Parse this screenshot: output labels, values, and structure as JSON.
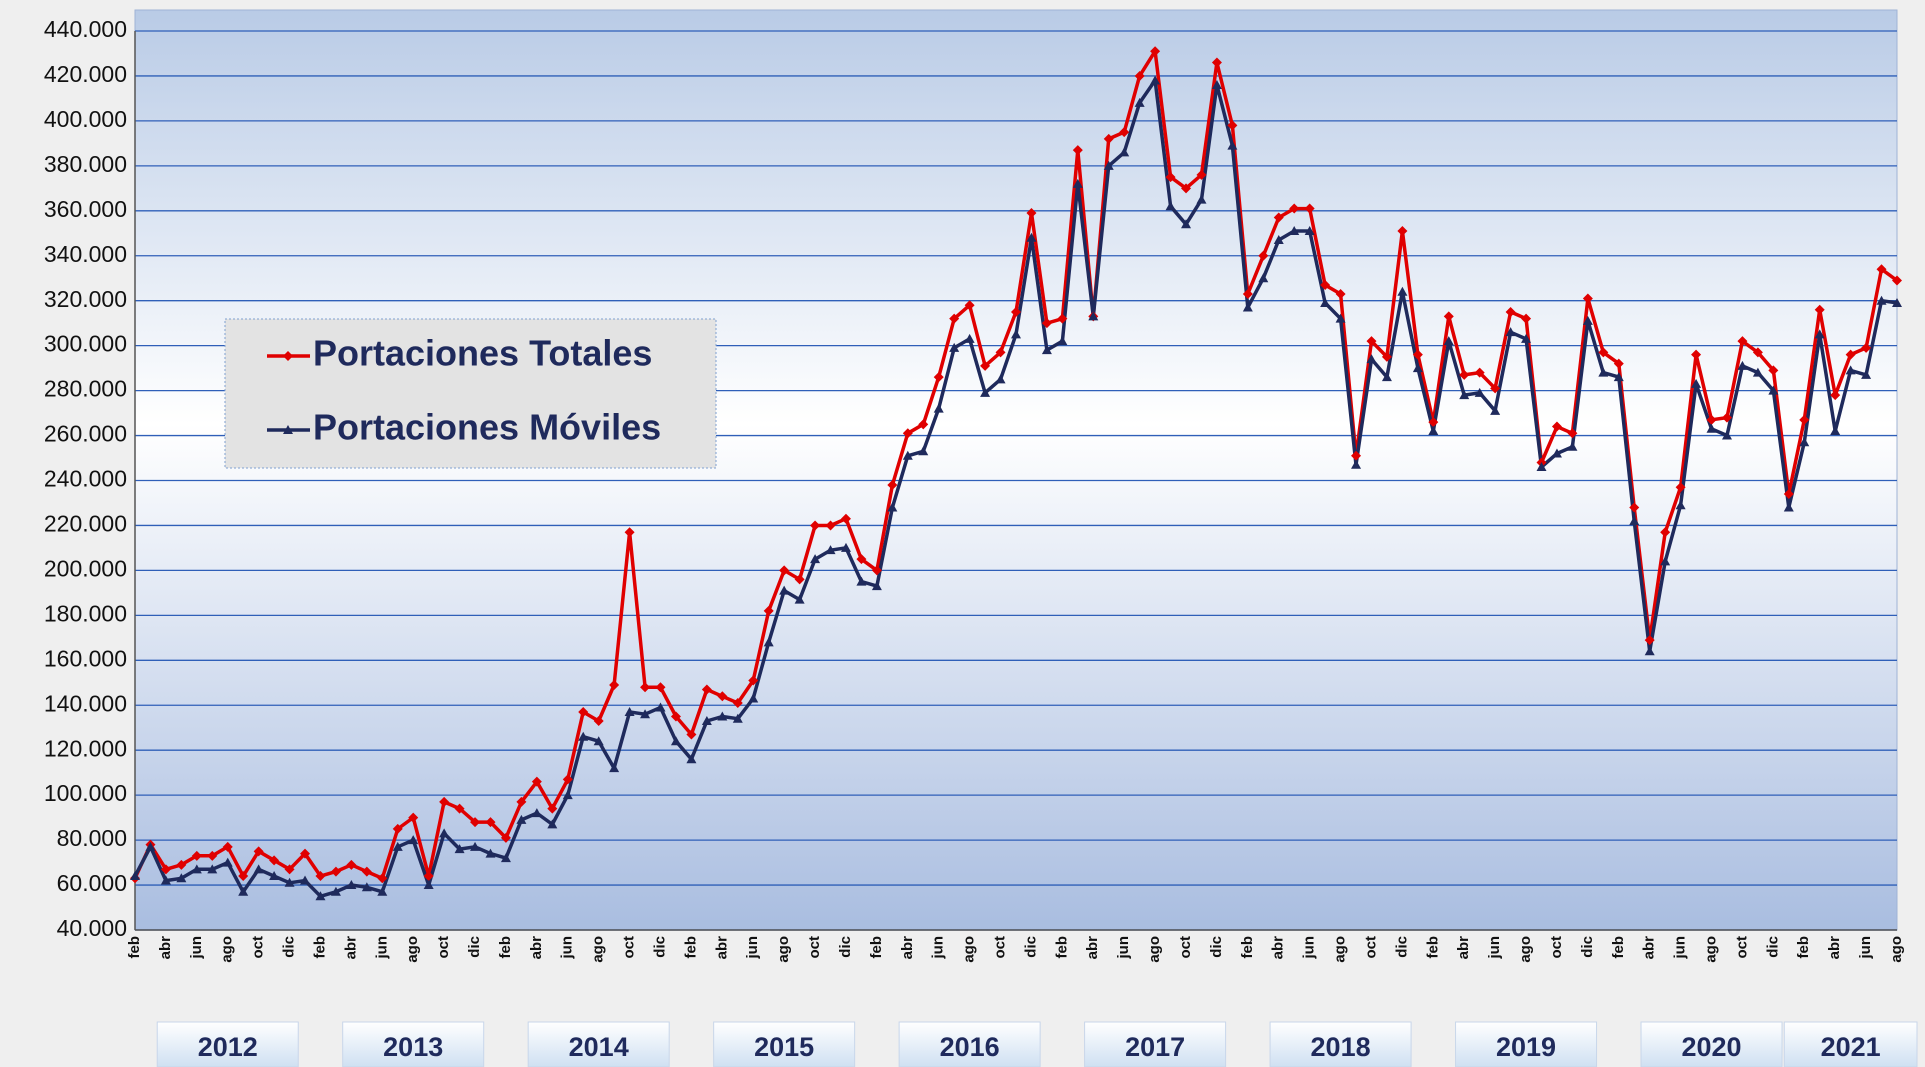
{
  "chart_data": {
    "type": "line",
    "categories": [
      "feb",
      null,
      "abr",
      null,
      "jun",
      null,
      "ago",
      null,
      "oct",
      null,
      "dic",
      null,
      "feb",
      null,
      "abr",
      null,
      "jun",
      null,
      "ago",
      null,
      "oct",
      null,
      "dic",
      null,
      "feb",
      null,
      "abr",
      null,
      "jun",
      null,
      "ago",
      null,
      "oct",
      null,
      "dic",
      null,
      "feb",
      null,
      "abr",
      null,
      "jun",
      null,
      "ago",
      null,
      "oct",
      null,
      "dic",
      null,
      "feb",
      null,
      "abr",
      null,
      "jun",
      null,
      "ago",
      null,
      "oct",
      null,
      "dic",
      null,
      "feb",
      null,
      "abr",
      null,
      "jun",
      null,
      "ago",
      null,
      "oct",
      null,
      "dic",
      null,
      "feb",
      null,
      "abr",
      null,
      "jun",
      null,
      "ago",
      null,
      "oct",
      null,
      "dic",
      null,
      "feb",
      null,
      "abr",
      null,
      "jun",
      null,
      "ago",
      null,
      "oct",
      null,
      "dic",
      null,
      "feb",
      null,
      "abr",
      null,
      "jun",
      null,
      "ago",
      null,
      "oct",
      null,
      "dic",
      null,
      "feb",
      null,
      "abr",
      null,
      "jun",
      null,
      "ago"
    ],
    "years": [
      "2012",
      "2013",
      "2014",
      "2015",
      "2016",
      "2017",
      "2018",
      "2019",
      "2020",
      "2021"
    ],
    "series": [
      {
        "name": "Portaciones Totales",
        "color": "#e00000",
        "marker": "diamond",
        "values": [
          63000,
          78000,
          67000,
          69000,
          73000,
          73000,
          77000,
          64000,
          75000,
          71000,
          67000,
          74000,
          64000,
          66000,
          69000,
          66000,
          63000,
          85000,
          90000,
          64000,
          97000,
          94000,
          88000,
          88000,
          81000,
          97000,
          106000,
          94000,
          107000,
          137000,
          133000,
          149000,
          217000,
          148000,
          148000,
          135000,
          127000,
          147000,
          144000,
          141000,
          151000,
          182000,
          200000,
          196000,
          220000,
          220000,
          223000,
          205000,
          200000,
          238000,
          261000,
          265000,
          286000,
          312000,
          318000,
          291000,
          297000,
          315000,
          359000,
          310000,
          312000,
          387000,
          313000,
          392000,
          395000,
          420000,
          431000,
          375000,
          370000,
          376000,
          426000,
          398000,
          323000,
          340000,
          357000,
          361000,
          361000,
          327000,
          323000,
          251000,
          302000,
          295000,
          351000,
          296000,
          266000,
          313000,
          287000,
          288000,
          281000,
          315000,
          312000,
          248000,
          264000,
          261000,
          321000,
          297000,
          292000,
          228000,
          169000,
          217000,
          237000,
          296000,
          267000,
          268000,
          302000,
          297000,
          289000,
          234000,
          267000,
          316000,
          278000,
          296000,
          299000,
          334000,
          329000
        ]
      },
      {
        "name": "Portaciones Móviles",
        "color": "#1f2a5c",
        "marker": "triangle",
        "values": [
          64000,
          77000,
          62000,
          63000,
          67000,
          67000,
          70000,
          57000,
          67000,
          64000,
          61000,
          62000,
          55000,
          57000,
          60000,
          59000,
          57000,
          77000,
          80000,
          60000,
          83000,
          76000,
          77000,
          74000,
          72000,
          89000,
          92000,
          87000,
          100000,
          126000,
          124000,
          112000,
          137000,
          136000,
          139000,
          124000,
          116000,
          133000,
          135000,
          134000,
          143000,
          168000,
          191000,
          187000,
          205000,
          209000,
          210000,
          195000,
          193000,
          228000,
          251000,
          253000,
          272000,
          299000,
          303000,
          279000,
          285000,
          305000,
          348000,
          298000,
          302000,
          372000,
          313000,
          380000,
          386000,
          408000,
          418000,
          362000,
          354000,
          365000,
          416000,
          389000,
          317000,
          330000,
          347000,
          351000,
          351000,
          319000,
          312000,
          247000,
          294000,
          286000,
          324000,
          290000,
          262000,
          302000,
          278000,
          279000,
          271000,
          306000,
          303000,
          246000,
          252000,
          255000,
          311000,
          288000,
          286000,
          222000,
          164000,
          204000,
          229000,
          283000,
          263000,
          260000,
          291000,
          288000,
          280000,
          228000,
          257000,
          305000,
          262000,
          289000,
          287000,
          320000,
          319000
        ]
      }
    ],
    "ylim": [
      40000,
      440000
    ],
    "yticks": [
      {
        "value": 40000,
        "label": "40.000"
      },
      {
        "value": 60000,
        "label": "60.000"
      },
      {
        "value": 80000,
        "label": "80.000"
      },
      {
        "value": 100000,
        "label": "100.000"
      },
      {
        "value": 120000,
        "label": "120.000"
      },
      {
        "value": 140000,
        "label": "140.000"
      },
      {
        "value": 160000,
        "label": "160.000"
      },
      {
        "value": 180000,
        "label": "180.000"
      },
      {
        "value": 200000,
        "label": "200.000"
      },
      {
        "value": 220000,
        "label": "220.000"
      },
      {
        "value": 240000,
        "label": "240.000"
      },
      {
        "value": 260000,
        "label": "260.000"
      },
      {
        "value": 280000,
        "label": "280.000"
      },
      {
        "value": 300000,
        "label": "300.000"
      },
      {
        "value": 320000,
        "label": "320.000"
      },
      {
        "value": 340000,
        "label": "340.000"
      },
      {
        "value": 360000,
        "label": "360.000"
      },
      {
        "value": 380000,
        "label": "380.000"
      },
      {
        "value": 400000,
        "label": "400.000"
      },
      {
        "value": 420000,
        "label": "420.000"
      },
      {
        "value": 440000,
        "label": "440.000"
      }
    ],
    "grid": true,
    "grid_color": "#2f5fb8",
    "legend": "left"
  }
}
